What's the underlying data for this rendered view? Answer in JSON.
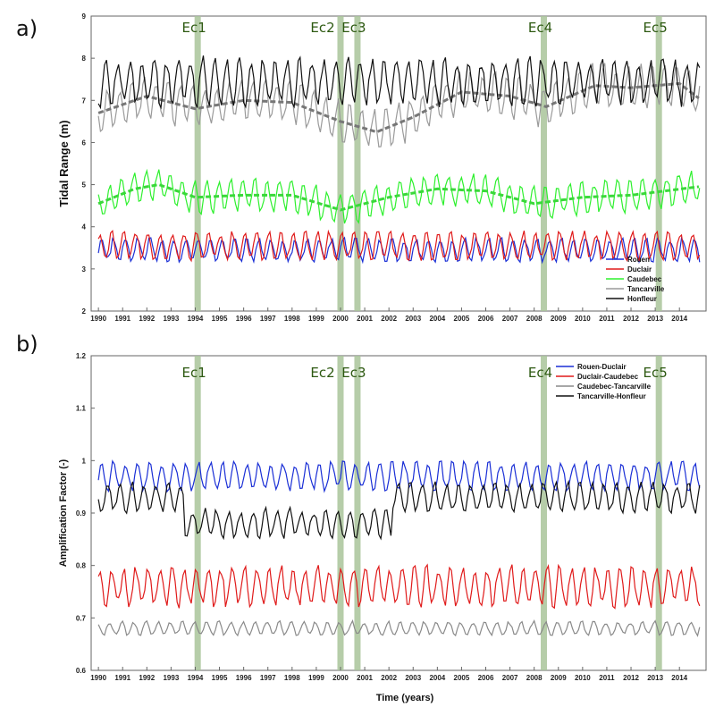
{
  "panels": [
    {
      "letter": "a)"
    },
    {
      "letter": "b)"
    }
  ],
  "xlabel": "Time (years)",
  "chart_data": [
    {
      "type": "line",
      "ylabel": "Tidal Range (m)",
      "xlim": [
        1989.7,
        2015.1
      ],
      "ylim": [
        2,
        9
      ],
      "yticks": [
        "2",
        "3",
        "4",
        "5",
        "6",
        "7",
        "8",
        "9"
      ],
      "xticks": [
        "1990",
        "1991",
        "1992",
        "1993",
        "1994",
        "1995",
        "1996",
        "1997",
        "1998",
        "1999",
        "2000",
        "2001",
        "2002",
        "2003",
        "2004",
        "2005",
        "2006",
        "2007",
        "2008",
        "2009",
        "2010",
        "2011",
        "2012",
        "2013",
        "2014"
      ],
      "events": [
        {
          "label": "Ec1",
          "x": 1994.1
        },
        {
          "label": "Ec2",
          "x": 2000.0
        },
        {
          "label": "Ec3",
          "x": 2000.7
        },
        {
          "label": "Ec4",
          "x": 2008.4
        },
        {
          "label": "Ec5",
          "x": 2013.15
        }
      ],
      "legend_position": "bottom-right",
      "series": [
        {
          "name": "Rouen",
          "color": "#1a2fd6",
          "mean": 3.45,
          "amp": 0.25
        },
        {
          "name": "Duclair",
          "color": "#e01a1a",
          "mean": 3.55,
          "amp": 0.3
        },
        {
          "name": "Caudebec",
          "color": "#2ef02e",
          "mean": 4.7,
          "amp": 0.35,
          "trend": [
            [
              1990,
              4.55
            ],
            [
              1991.5,
              4.9
            ],
            [
              1992.5,
              5.0
            ],
            [
              1994,
              4.7
            ],
            [
              1996,
              4.75
            ],
            [
              1998,
              4.75
            ],
            [
              2000,
              4.4
            ],
            [
              2002,
              4.7
            ],
            [
              2004,
              4.9
            ],
            [
              2006,
              4.85
            ],
            [
              2008,
              4.55
            ],
            [
              2010,
              4.7
            ],
            [
              2012,
              4.75
            ],
            [
              2014.8,
              4.95
            ]
          ]
        },
        {
          "name": "Tancarville",
          "color": "#9a9a9a",
          "mean": 6.9,
          "amp": 0.45,
          "trend": [
            [
              1990,
              6.7
            ],
            [
              1992,
              7.1
            ],
            [
              1994,
              6.8
            ],
            [
              1996,
              7.0
            ],
            [
              1998,
              6.95
            ],
            [
              2000,
              6.5
            ],
            [
              2001.5,
              6.25
            ],
            [
              2003,
              6.6
            ],
            [
              2005,
              7.2
            ],
            [
              2007,
              7.1
            ],
            [
              2008.5,
              6.85
            ],
            [
              2010.5,
              7.35
            ],
            [
              2012,
              7.3
            ],
            [
              2014,
              7.4
            ],
            [
              2014.8,
              7.05
            ]
          ]
        },
        {
          "name": "Honfleur",
          "color": "#111111",
          "mean": 7.45,
          "amp": 0.5
        }
      ]
    },
    {
      "type": "line",
      "ylabel": "Amplification Factor (-)",
      "xlim": [
        1989.7,
        2015.1
      ],
      "ylim": [
        0.6,
        1.2
      ],
      "yticks": [
        "0.6",
        "0.7",
        "0.8",
        "0.9",
        "1",
        "1.1",
        "1.2"
      ],
      "xticks": [
        "1990",
        "1991",
        "1992",
        "1993",
        "1994",
        "1995",
        "1996",
        "1997",
        "1998",
        "1999",
        "2000",
        "2001",
        "2002",
        "2003",
        "2004",
        "2005",
        "2006",
        "2007",
        "2008",
        "2009",
        "2010",
        "2011",
        "2012",
        "2013",
        "2014"
      ],
      "events": [
        {
          "label": "Ec1",
          "x": 1994.1
        },
        {
          "label": "Ec2",
          "x": 2000.0
        },
        {
          "label": "Ec3",
          "x": 2000.7
        },
        {
          "label": "Ec4",
          "x": 2008.4
        },
        {
          "label": "Ec5",
          "x": 2013.15
        }
      ],
      "legend_position": "top-right",
      "series": [
        {
          "name": "Rouen-Duclair",
          "color": "#1a2fd6",
          "mean": 0.97,
          "amp": 0.025
        },
        {
          "name": "Duclair-Caudebec",
          "color": "#e01a1a",
          "mean": 0.76,
          "amp": 0.035
        },
        {
          "name": "Caudebec-Tancarville",
          "color": "#8a8a8a",
          "mean": 0.68,
          "amp": 0.012
        },
        {
          "name": "Tancarville-Honfleur",
          "color": "#111111",
          "mean": 0.93,
          "amp": 0.025
        }
      ]
    }
  ]
}
